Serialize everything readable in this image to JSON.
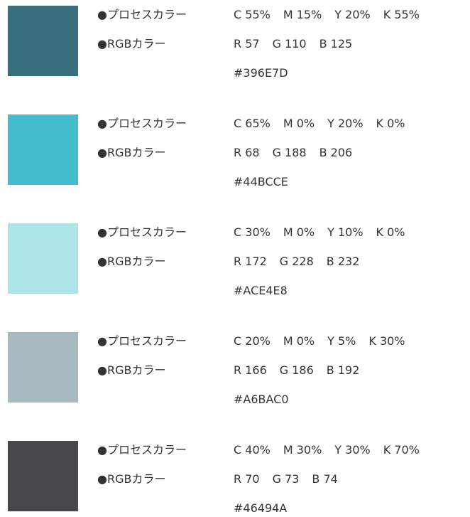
{
  "items": [
    {
      "process_label": "●プロセスカラー",
      "cmyk": [
        "C 55%",
        "M 15%",
        "Y 20%",
        "K 55%"
      ],
      "rgb_label": "●RGBカラー",
      "rgb": [
        "R 57",
        "G 110",
        "B 125"
      ],
      "hex": "#396E7D"
    },
    {
      "process_label": "●プロセスカラー",
      "cmyk": [
        "C 65%",
        "M 0%",
        "Y 20%",
        "K 0%"
      ],
      "rgb_label": "●RGBカラー",
      "rgb": [
        "R 68",
        "G 188",
        "B 206"
      ],
      "hex": "#44BCCE"
    },
    {
      "process_label": "●プロセスカラー",
      "cmyk": [
        "C 30%",
        "M 0%",
        "Y 10%",
        "K 0%"
      ],
      "rgb_label": "●RGBカラー",
      "rgb": [
        "R 172",
        "G 228",
        "B 232"
      ],
      "hex": "#ACE4E8"
    },
    {
      "process_label": "●プロセスカラー",
      "cmyk": [
        "C 20%",
        "M 0%",
        "Y 5%",
        "K 30%"
      ],
      "rgb_label": "●RGBカラー",
      "rgb": [
        "R 166",
        "G 186",
        "B 192"
      ],
      "hex": "#A6BAC0"
    },
    {
      "process_label": "●プロセスカラー",
      "cmyk": [
        "C 40%",
        "M 30%",
        "Y 30%",
        "K 70%"
      ],
      "rgb_label": "●RGBカラー",
      "rgb": [
        "R 70",
        "G 73",
        "B 74"
      ],
      "hex": "#46494A"
    }
  ]
}
